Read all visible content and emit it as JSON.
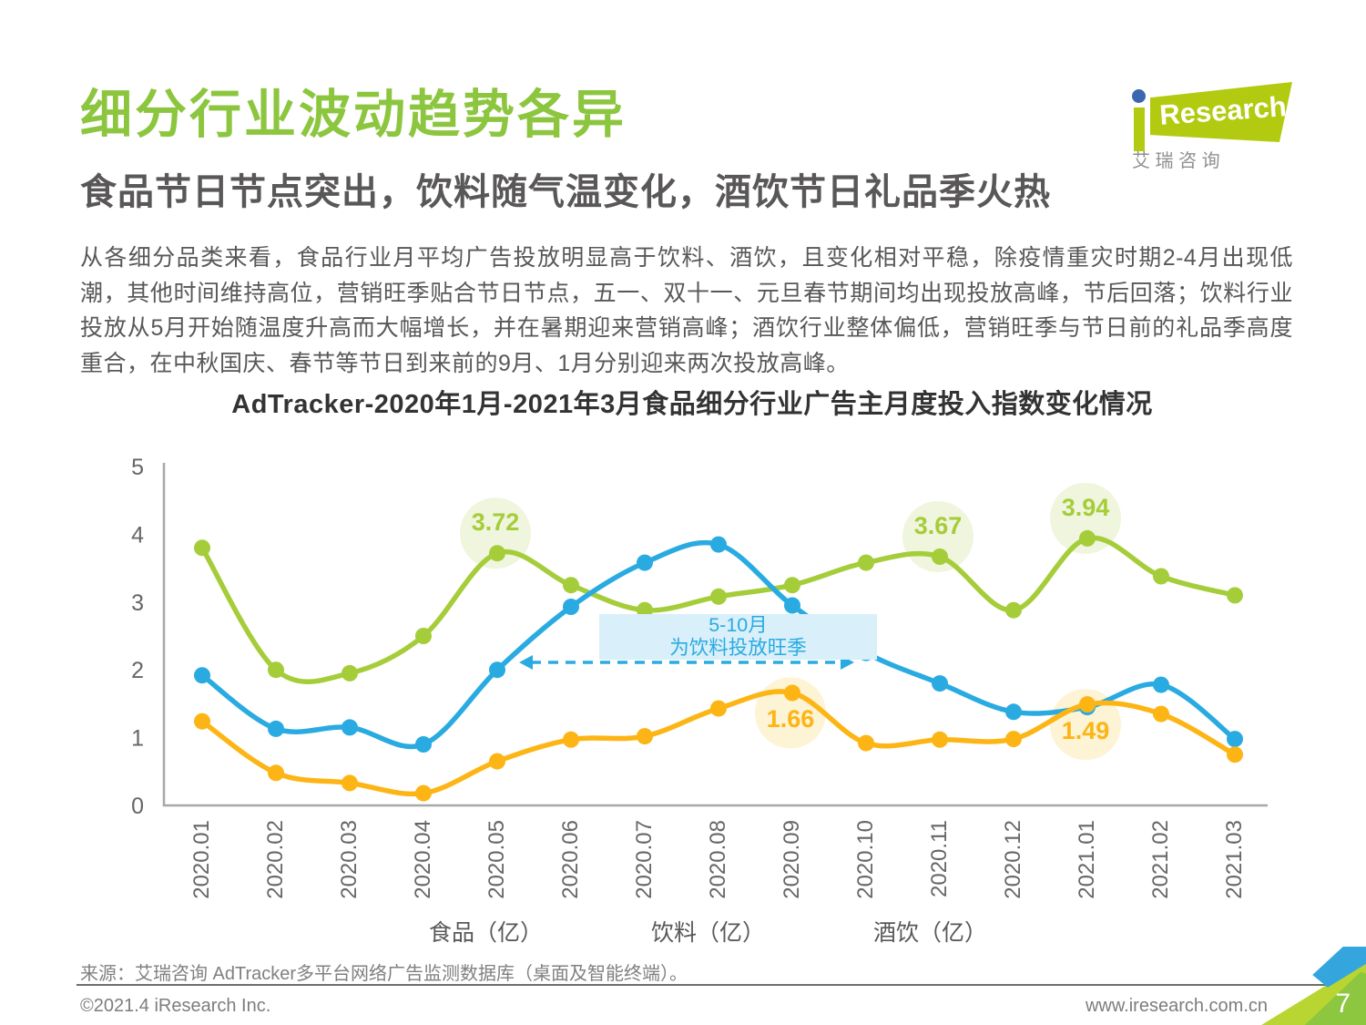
{
  "header": {
    "title": "细分行业波动趋势各异",
    "subtitle": "食品节日节点突出，饮料随气温变化，酒饮节日礼品季火热",
    "logo": {
      "brand": "Research",
      "brand_cn": "艾 瑞 咨 询"
    }
  },
  "intro": "从各细分品类来看，食品行业月平均广告投放明显高于饮料、酒饮，且变化相对平稳，除疫情重灾时期2-4月出现低潮，其他时间维持高位，营销旺季贴合节日节点，五一、双十一、元旦春节期间均出现投放高峰，节后回落；饮料行业投放从5月开始随温度升高而大幅增长，并在暑期迎来营销高峰；酒饮行业整体偏低，营销旺季与节日前的礼品季高度重合，在中秋国庆、春节等节日到来前的9月、1月分别迎来两次投放高峰。",
  "chart_data": {
    "type": "line",
    "title": "AdTracker-2020年1月-2021年3月食品细分行业广告主月度投入指数变化情况",
    "categories": [
      "2020.01",
      "2020.02",
      "2020.03",
      "2020.04",
      "2020.05",
      "2020.06",
      "2020.07",
      "2020.08",
      "2020.09",
      "2020.10",
      "2020.11",
      "2020.12",
      "2021.01",
      "2021.02",
      "2021.03"
    ],
    "yticks": [
      0,
      1,
      2,
      3,
      4,
      5
    ],
    "ylim": [
      0,
      5
    ],
    "grid": false,
    "legend_position": "bottom",
    "series": [
      {
        "key": "food",
        "name": "食品（亿）",
        "color": "#a5cd39",
        "label_bg": "#f0f5de",
        "values": [
          3.8,
          2.0,
          1.95,
          2.5,
          3.72,
          3.25,
          2.88,
          3.08,
          3.25,
          3.58,
          3.67,
          2.88,
          3.94,
          3.38,
          3.1
        ],
        "point_labels": [
          {
            "index": 4,
            "text": "3.72",
            "side": "above"
          },
          {
            "index": 10,
            "text": "3.67",
            "side": "above"
          },
          {
            "index": 12,
            "text": "3.94",
            "side": "above"
          }
        ]
      },
      {
        "key": "drink",
        "name": "饮料（亿）",
        "color": "#29abe2",
        "label_bg": "#d9eff9",
        "values": [
          1.92,
          1.13,
          1.15,
          0.9,
          2.0,
          2.93,
          3.58,
          3.85,
          2.95,
          2.25,
          1.8,
          1.38,
          1.45,
          1.78,
          0.98
        ],
        "point_labels": []
      },
      {
        "key": "alcohol",
        "name": "酒饮（亿）",
        "color": "#fcb514",
        "label_bg": "#fdf3d5",
        "values": [
          1.24,
          0.48,
          0.33,
          0.18,
          0.65,
          0.97,
          1.02,
          1.43,
          1.66,
          0.92,
          0.97,
          0.98,
          1.49,
          1.35,
          0.75
        ],
        "point_labels": [
          {
            "index": 8,
            "text": "1.66",
            "side": "below"
          },
          {
            "index": 12,
            "text": "1.49",
            "side": "below"
          }
        ]
      }
    ],
    "annotations": {
      "note": {
        "line1": "5-10月",
        "line2": "为饮料投放旺季"
      },
      "arrow": {
        "from": "2020.05",
        "to": "2020.10",
        "y_value": 2.11,
        "color": "#29abe2"
      }
    }
  },
  "footer": {
    "source": "来源：艾瑞咨询 AdTracker多平台网络广告监测数据库（桌面及智能终端）。",
    "copyright": "©2021.4 iResearch Inc.",
    "website": "www.iresearch.com.cn",
    "page": "7"
  }
}
